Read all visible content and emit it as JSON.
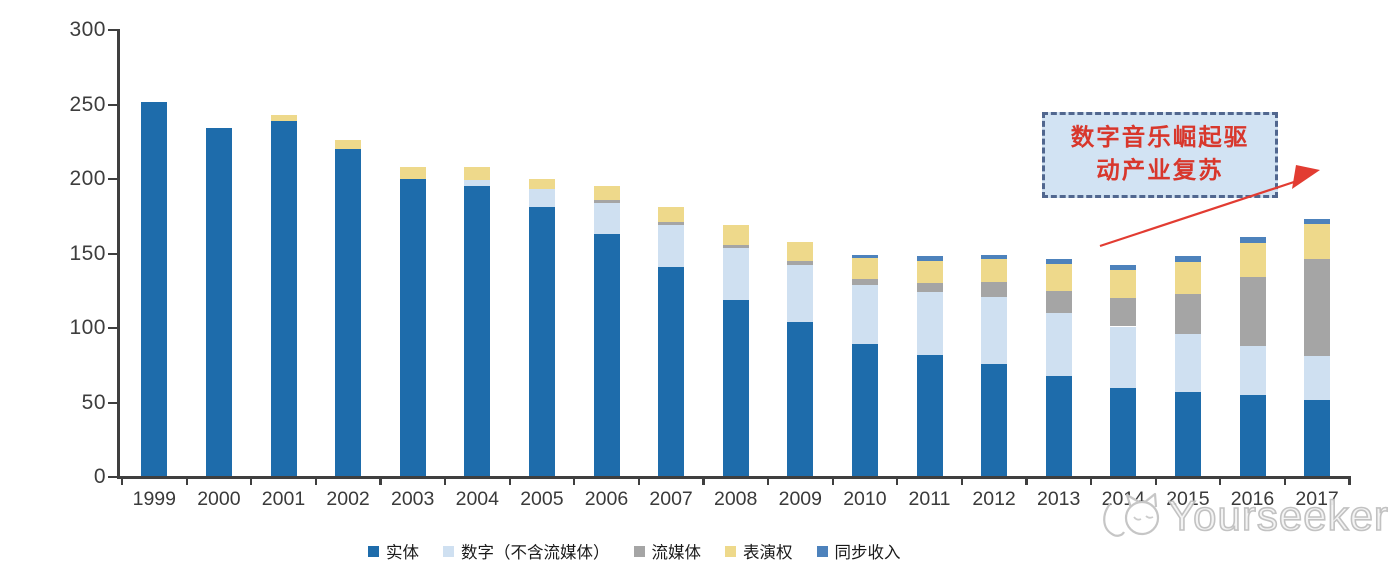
{
  "chart_data": {
    "type": "bar",
    "stacked": true,
    "title": "",
    "xlabel": "",
    "ylabel": "",
    "ylim": [
      0,
      300
    ],
    "yticks": [
      0,
      50,
      100,
      150,
      200,
      250,
      300
    ],
    "grid": false,
    "legend_position": "bottom",
    "axis_color": "#3f3f3f",
    "categories": [
      "1999",
      "2000",
      "2001",
      "2002",
      "2003",
      "2004",
      "2005",
      "2006",
      "2007",
      "2008",
      "2009",
      "2010",
      "2011",
      "2012",
      "2013",
      "2014",
      "2015",
      "2016",
      "2017"
    ],
    "series": [
      {
        "name": "实体",
        "color": "#1e6cab",
        "values": [
          252,
          234,
          239,
          220,
          200,
          195,
          181,
          163,
          141,
          119,
          104,
          89,
          82,
          76,
          68,
          60,
          57,
          55,
          52
        ]
      },
      {
        "name": "数字（不含流媒体）",
        "color": "#cfe0f1",
        "values": [
          0,
          0,
          0,
          0,
          0,
          4,
          12,
          21,
          28,
          35,
          38,
          40,
          42,
          45,
          42,
          41,
          39,
          33,
          29
        ]
      },
      {
        "name": "流媒体",
        "color": "#a5a5a5",
        "values": [
          0,
          0,
          0,
          0,
          0,
          0,
          0,
          2,
          2,
          2,
          3,
          4,
          6,
          10,
          15,
          19,
          27,
          46,
          65
        ]
      },
      {
        "name": "表演权",
        "color": "#eed98b",
        "values": [
          0,
          0,
          4,
          6,
          8,
          9,
          7,
          9,
          10,
          13,
          13,
          14,
          15,
          15,
          18,
          19,
          21,
          23,
          24
        ]
      },
      {
        "name": "同步收入",
        "color": "#4d82bc",
        "values": [
          0,
          0,
          0,
          0,
          0,
          0,
          0,
          0,
          0,
          0,
          0,
          2,
          3,
          3,
          3,
          3,
          4,
          4,
          3
        ]
      }
    ],
    "totals": [
      252,
      234,
      243,
      226,
      208,
      208,
      200,
      195,
      181,
      169,
      158,
      149,
      148,
      149,
      146,
      142,
      148,
      161,
      173
    ],
    "annotation": {
      "line1": "数字音乐崛起驱",
      "line2": "动产业复苏",
      "text_color": "#d8372c",
      "box_fill": "#d2e3f3",
      "box_border": "#51678f",
      "arrow_color": "#e23c32"
    }
  },
  "watermark": {
    "text": "Yourseeker",
    "color": "#c3c3c3"
  }
}
